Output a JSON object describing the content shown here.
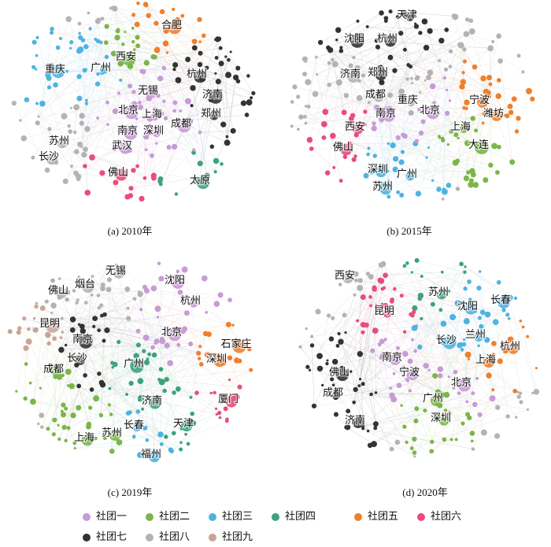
{
  "panels": [
    {
      "caption": "(a) 2010年",
      "nodes": [
        {
          "label": "合肥",
          "color": "#f07f2c"
        },
        {
          "label": "西安",
          "color": "#7ab648"
        },
        {
          "label": "广州",
          "color": "#4fb3e0"
        },
        {
          "label": "重庆",
          "color": "#4fb3e0"
        },
        {
          "label": "杭州",
          "color": "#333333"
        },
        {
          "label": "无锡",
          "color": "#c89ad6"
        },
        {
          "label": "济南",
          "color": "#333333"
        },
        {
          "label": "北京",
          "color": "#c89ad6"
        },
        {
          "label": "上海",
          "color": "#c89ad6"
        },
        {
          "label": "郑州",
          "color": "#333333"
        },
        {
          "label": "成都",
          "color": "#c89ad6"
        },
        {
          "label": "南京",
          "color": "#c89ad6"
        },
        {
          "label": "深圳",
          "color": "#c89ad6"
        },
        {
          "label": "苏州",
          "color": "#b3b3b3"
        },
        {
          "label": "武汉",
          "color": "#c89ad6"
        },
        {
          "label": "长沙",
          "color": "#b3b3b3"
        },
        {
          "label": "佛山",
          "color": "#e84d7a"
        },
        {
          "label": "太原",
          "color": "#3ca37a"
        }
      ]
    },
    {
      "caption": "(b) 2015年",
      "nodes": [
        {
          "label": "天津",
          "color": "#333333"
        },
        {
          "label": "沈阳",
          "color": "#333333"
        },
        {
          "label": "杭州",
          "color": "#333333"
        },
        {
          "label": "济南",
          "color": "#b3b3b3"
        },
        {
          "label": "郑州",
          "color": "#333333"
        },
        {
          "label": "成都",
          "color": "#b3b3b3"
        },
        {
          "label": "重庆",
          "color": "#b3b3b3"
        },
        {
          "label": "宁波",
          "color": "#f07f2c"
        },
        {
          "label": "北京",
          "color": "#c89ad6"
        },
        {
          "label": "南京",
          "color": "#c89ad6"
        },
        {
          "label": "潍坊",
          "color": "#f07f2c"
        },
        {
          "label": "上海",
          "color": "#7ab648"
        },
        {
          "label": "西安",
          "color": "#e84d7a"
        },
        {
          "label": "大连",
          "color": "#7ab648"
        },
        {
          "label": "佛山",
          "color": "#e84d7a"
        },
        {
          "label": "深圳",
          "color": "#4fb3e0"
        },
        {
          "label": "广州",
          "color": "#4fb3e0"
        },
        {
          "label": "苏州",
          "color": "#4fb3e0"
        }
      ]
    },
    {
      "caption": "(c) 2019年",
      "nodes": [
        {
          "label": "无锡",
          "color": "#b3b3b3"
        },
        {
          "label": "烟台",
          "color": "#b3b3b3"
        },
        {
          "label": "沈阳",
          "color": "#c89ad6"
        },
        {
          "label": "佛山",
          "color": "#b3b3b3"
        },
        {
          "label": "杭州",
          "color": "#c89ad6"
        },
        {
          "label": "昆明",
          "color": "#c9a598"
        },
        {
          "label": "北京",
          "color": "#c89ad6"
        },
        {
          "label": "南京",
          "color": "#333333"
        },
        {
          "label": "石家庄",
          "color": "#f07f2c"
        },
        {
          "label": "长沙",
          "color": "#333333"
        },
        {
          "label": "深圳",
          "color": "#f07f2c"
        },
        {
          "label": "广州",
          "color": "#3ca37a"
        },
        {
          "label": "成都",
          "color": "#7ab648"
        },
        {
          "label": "济南",
          "color": "#3ca37a"
        },
        {
          "label": "厦门",
          "color": "#e84d7a"
        },
        {
          "label": "长春",
          "color": "#4fb3e0"
        },
        {
          "label": "天津",
          "color": "#3ca37a"
        },
        {
          "label": "上海",
          "color": "#7ab648"
        },
        {
          "label": "苏州",
          "color": "#7ab648"
        },
        {
          "label": "福州",
          "color": "#4fb3e0"
        }
      ]
    },
    {
      "caption": "(d) 2020年",
      "nodes": [
        {
          "label": "西安",
          "color": "#b3b3b3"
        },
        {
          "label": "苏州",
          "color": "#3ca37a"
        },
        {
          "label": "长春",
          "color": "#4fb3e0"
        },
        {
          "label": "沈阳",
          "color": "#4fb3e0"
        },
        {
          "label": "昆明",
          "color": "#e84d7a"
        },
        {
          "label": "兰州",
          "color": "#4fb3e0"
        },
        {
          "label": "长沙",
          "color": "#4fb3e0"
        },
        {
          "label": "杭州",
          "color": "#f07f2c"
        },
        {
          "label": "南京",
          "color": "#c89ad6"
        },
        {
          "label": "上海",
          "color": "#f07f2c"
        },
        {
          "label": "宁波",
          "color": "#c89ad6"
        },
        {
          "label": "佛山",
          "color": "#333333"
        },
        {
          "label": "北京",
          "color": "#c89ad6"
        },
        {
          "label": "成都",
          "color": "#333333"
        },
        {
          "label": "广州",
          "color": "#7ab648"
        },
        {
          "label": "深圳",
          "color": "#7ab648"
        },
        {
          "label": "济南",
          "color": "#333333"
        }
      ]
    }
  ],
  "legend": [
    {
      "label": "社团一",
      "color": "#c89ad6"
    },
    {
      "label": "社团二",
      "color": "#7ab648"
    },
    {
      "label": "社团三",
      "color": "#4fb3e0"
    },
    {
      "label": "社团四",
      "color": "#3ca37a"
    },
    {
      "label": "社团五",
      "color": "#f07f2c"
    },
    {
      "label": "社团六",
      "color": "#e84d7a"
    },
    {
      "label": "社团七",
      "color": "#333333"
    },
    {
      "label": "社团八",
      "color": "#b3b3b3"
    },
    {
      "label": "社团九",
      "color": "#c9a598"
    }
  ]
}
